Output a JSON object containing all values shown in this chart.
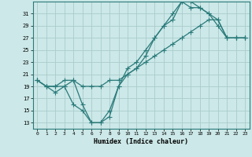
{
  "xlabel": "Humidex (Indice chaleur)",
  "bg_color": "#cce8e8",
  "grid_color": "#aacccc",
  "line_color": "#2a7a7a",
  "xlim": [
    -0.5,
    23.5
  ],
  "ylim": [
    12,
    33
  ],
  "xticks": [
    0,
    1,
    2,
    3,
    4,
    5,
    6,
    7,
    8,
    9,
    10,
    11,
    12,
    13,
    14,
    15,
    16,
    17,
    18,
    19,
    20,
    21,
    22,
    23
  ],
  "yticks": [
    13,
    15,
    17,
    19,
    21,
    23,
    25,
    27,
    29,
    31
  ],
  "line1_x": [
    0,
    1,
    2,
    3,
    4,
    5,
    6,
    7,
    8,
    9,
    10,
    11,
    12,
    13,
    14,
    15,
    16,
    17,
    18,
    19,
    20,
    21,
    22,
    23
  ],
  "line1_y": [
    20,
    19,
    19,
    20,
    20,
    19,
    19,
    19,
    20,
    20,
    21,
    22,
    23,
    24,
    25,
    26,
    27,
    28,
    29,
    30,
    30,
    27,
    27,
    27
  ],
  "line2_x": [
    0,
    1,
    2,
    3,
    4,
    5,
    6,
    7,
    8,
    9,
    10,
    11,
    12,
    13,
    14,
    15,
    16,
    17,
    18,
    19,
    20,
    21,
    22,
    23
  ],
  "line2_y": [
    20,
    19,
    18,
    19,
    16,
    15,
    13,
    13,
    14,
    19,
    21,
    22,
    24,
    27,
    29,
    31,
    33,
    32,
    32,
    31,
    29,
    27,
    27,
    27
  ],
  "line3_x": [
    0,
    1,
    2,
    3,
    4,
    5,
    6,
    7,
    8,
    9,
    10,
    11,
    12,
    13,
    14,
    15,
    16,
    17,
    18,
    19,
    20,
    21,
    22,
    23
  ],
  "line3_y": [
    20,
    19,
    19,
    19,
    20,
    16,
    13,
    13,
    15,
    19,
    22,
    23,
    25,
    27,
    29,
    30,
    33,
    33,
    32,
    31,
    30,
    27,
    27,
    27
  ]
}
